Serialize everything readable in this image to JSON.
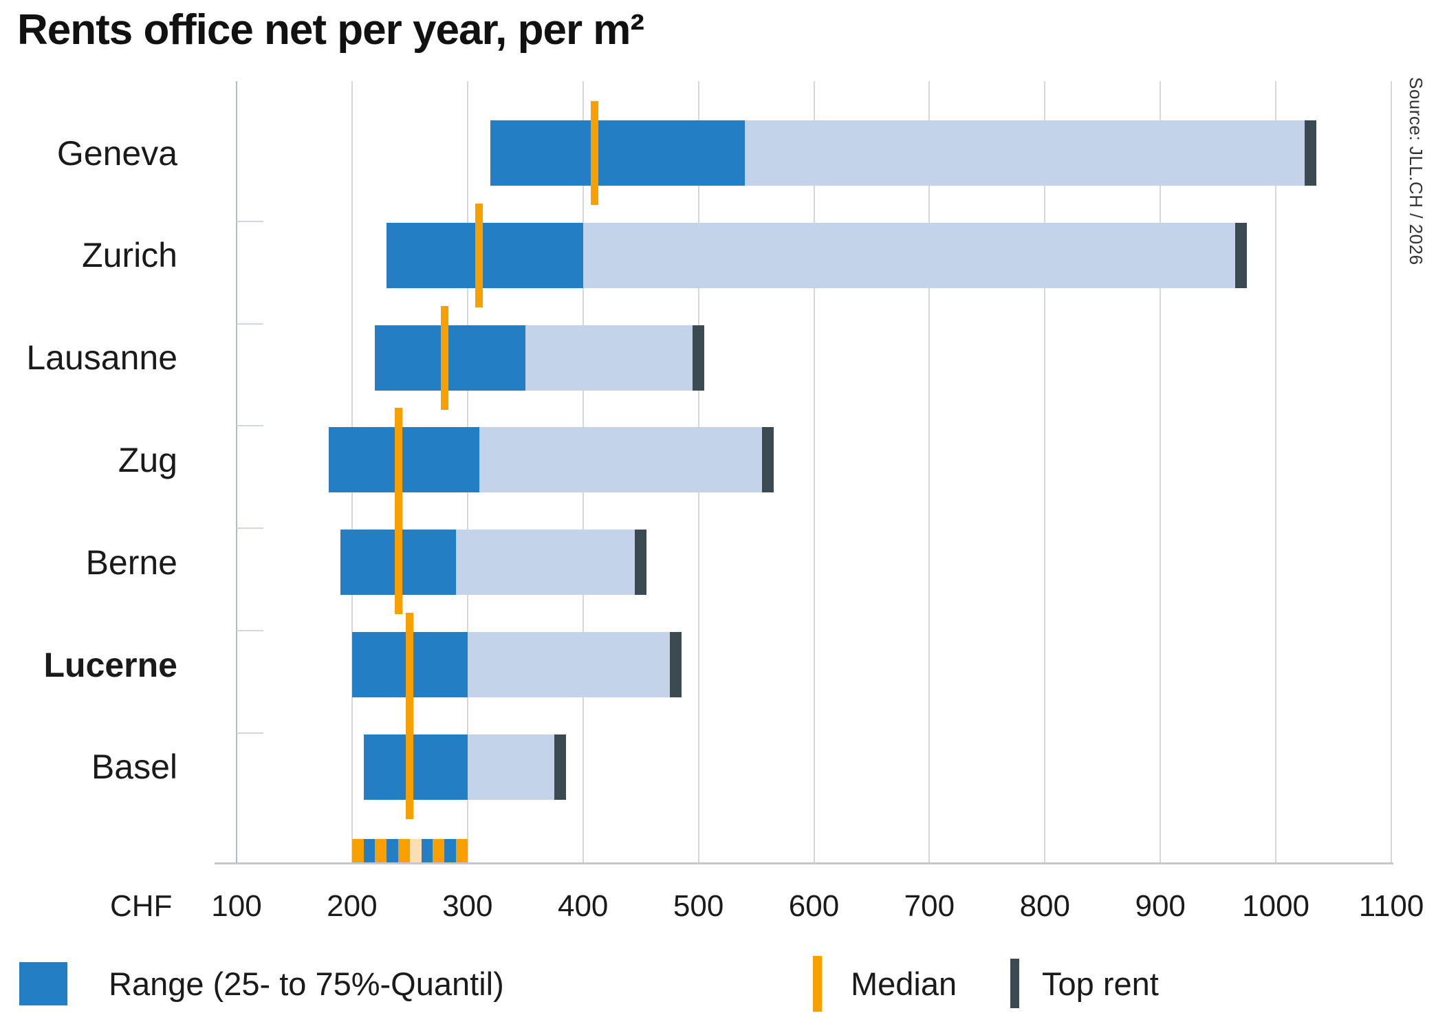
{
  "title": "Rents office net per year, per m²",
  "source": "Source: JLL.CH / 2026",
  "axis": {
    "unit": "CHF",
    "ticks": [
      "100",
      "200",
      "300",
      "400",
      "500",
      "600",
      "700",
      "800",
      "900",
      "1000",
      "1100"
    ],
    "tick_values": [
      100,
      200,
      300,
      400,
      500,
      600,
      700,
      800,
      900,
      1000,
      1100
    ]
  },
  "chart_data": {
    "type": "bar",
    "orientation": "horizontal-range-bars",
    "title": "Rents office net per year, per m²",
    "xlabel": "CHF",
    "xlim": [
      100,
      1100
    ],
    "grid": true,
    "rows": [
      {
        "city": "Geneva",
        "q25": 320,
        "median": 410,
        "q75": 540,
        "top_rent": 1030,
        "highlight": false
      },
      {
        "city": "Zurich",
        "q25": 230,
        "median": 310,
        "q75": 400,
        "top_rent": 970,
        "highlight": false
      },
      {
        "city": "Lausanne",
        "q25": 220,
        "median": 280,
        "q75": 350,
        "top_rent": 500,
        "highlight": false
      },
      {
        "city": "Zug",
        "q25": 180,
        "median": 240,
        "q75": 310,
        "top_rent": 560,
        "highlight": false
      },
      {
        "city": "Berne",
        "q25": 190,
        "median": 240,
        "q75": 290,
        "top_rent": 450,
        "highlight": false
      },
      {
        "city": "Lucerne",
        "q25": 200,
        "median": 250,
        "q75": 300,
        "top_rent": 480,
        "highlight": true
      },
      {
        "city": "Basel",
        "q25": 210,
        "median": 250,
        "q75": 300,
        "top_rent": 380,
        "highlight": false
      }
    ],
    "unlabeled_partial_row": {
      "from": 200,
      "to": 300,
      "stripes": [
        "orange",
        "blue",
        "orange",
        "blue",
        "orange",
        "peach",
        "blue",
        "orange",
        "blue",
        "orange"
      ]
    }
  },
  "legend": {
    "range_label": "Range (25- to 75%-Quantil)",
    "median_label": "Median",
    "top_rent_label": "Top rent"
  },
  "colors": {
    "range_blue": "#247ec3",
    "upper_range_light": "#c5d3ea",
    "median_orange": "#f7a000",
    "top_rent_dark": "#3a4a50",
    "stripe_peach": "#fbdeb5",
    "gridline": "#d4d8dc",
    "axis_line": "#b0bac6",
    "text": "#1a1a1a"
  }
}
